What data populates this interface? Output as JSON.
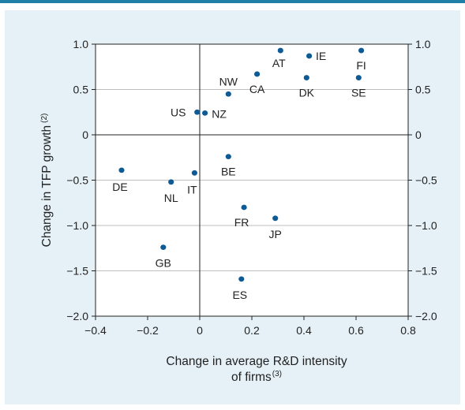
{
  "chart_data": {
    "type": "scatter",
    "xlabel": "Change in average R&D intensity of firms",
    "xlabel_line1": "Change in average R&D intensity",
    "xlabel_line2": "of firms",
    "xlabel_note": "(3)",
    "ylabel": "Change in TFP growth",
    "ylabel_note": "(2)",
    "xlim": [
      -0.4,
      0.8
    ],
    "ylim": [
      -2.0,
      1.0
    ],
    "x_ticks": [
      "-0.4",
      "-0.2",
      "0",
      "0.2",
      "0.4",
      "0.6",
      "0.8"
    ],
    "x_tick_values": [
      -0.4,
      -0.2,
      0,
      0.2,
      0.4,
      0.6,
      0.8
    ],
    "y_ticks_left": [
      "1.0",
      "0.5",
      "0",
      "-0.5",
      "-1.0",
      "-1.5",
      "-2.0"
    ],
    "y_ticks_right": [
      "1.0",
      "0.5",
      "0",
      "-0.5",
      "-1.0",
      "-1.5",
      "-2.0"
    ],
    "y_tick_values": [
      1.0,
      0.5,
      0,
      -0.5,
      -1.0,
      -1.5,
      -2.0
    ],
    "grid": "horizontal",
    "point_color": "#0e5a94",
    "points": [
      {
        "label": "AT",
        "x": 0.31,
        "y": 0.93
      },
      {
        "label": "IE",
        "x": 0.42,
        "y": 0.87
      },
      {
        "label": "FI",
        "x": 0.62,
        "y": 0.93
      },
      {
        "label": "NW",
        "x": 0.11,
        "y": 0.45
      },
      {
        "label": "CA",
        "x": 0.22,
        "y": 0.67
      },
      {
        "label": "DK",
        "x": 0.41,
        "y": 0.63
      },
      {
        "label": "SE",
        "x": 0.61,
        "y": 0.63
      },
      {
        "label": "US",
        "x": -0.01,
        "y": 0.25
      },
      {
        "label": "NZ",
        "x": 0.02,
        "y": 0.24
      },
      {
        "label": "BE",
        "x": 0.11,
        "y": -0.24
      },
      {
        "label": "DE",
        "x": -0.3,
        "y": -0.39
      },
      {
        "label": "NL",
        "x": -0.11,
        "y": -0.52
      },
      {
        "label": "IT",
        "x": -0.02,
        "y": -0.42
      },
      {
        "label": "FR",
        "x": 0.17,
        "y": -0.8
      },
      {
        "label": "JP",
        "x": 0.29,
        "y": -0.92
      },
      {
        "label": "GB",
        "x": -0.14,
        "y": -1.24
      },
      {
        "label": "ES",
        "x": 0.16,
        "y": -1.59
      }
    ]
  }
}
